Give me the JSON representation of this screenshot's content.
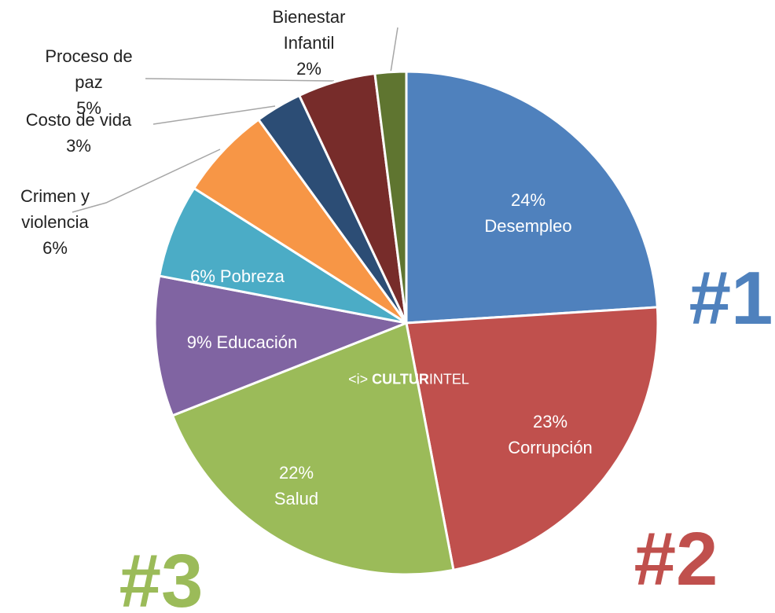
{
  "chart_data": {
    "type": "pie",
    "categories": [
      "Desempleo",
      "Corrupción",
      "Salud",
      "Educación",
      "Pobreza",
      "Crimen y violencia",
      "Costo de vida",
      "Proceso de paz",
      "Bienestar Infantil"
    ],
    "values": [
      24,
      23,
      22,
      9,
      6,
      6,
      3,
      5,
      2
    ],
    "value_labels": [
      "24%",
      "23%",
      "22%",
      "9%",
      "6%",
      "6%",
      "3%",
      "5%",
      "2%"
    ],
    "colors": [
      "#4f81bd",
      "#c0504d",
      "#9bbb59",
      "#8064a2",
      "#4bacc6",
      "#f79646",
      "#2c4d75",
      "#772c2a",
      "#5f7530"
    ],
    "annotations": [
      {
        "text": "#1",
        "color": "#4f81bd"
      },
      {
        "text": "#2",
        "color": "#c0504d"
      },
      {
        "text": "#3",
        "color": "#9bbb59"
      }
    ],
    "watermark": {
      "bold": "CULTUR",
      "light": "INTEL"
    }
  }
}
